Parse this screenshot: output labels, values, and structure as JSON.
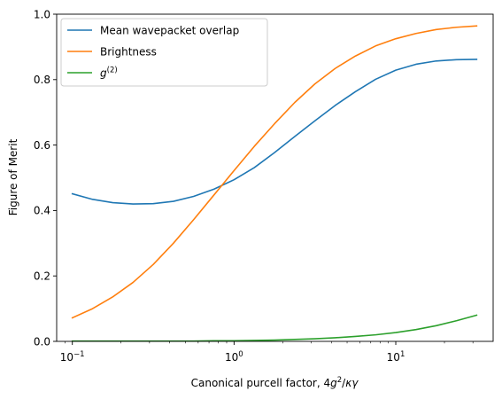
{
  "chart_data": {
    "type": "line",
    "x_scale": "log",
    "xlim": [
      0.08,
      40
    ],
    "ylim": [
      0.0,
      1.0
    ],
    "xlabel": "Canonical purcell factor, 4g²/κγ",
    "ylabel": "Figure of Merit",
    "legend_position": "top-left",
    "grid": false,
    "x_ticks": [
      {
        "value": 0.1,
        "base": "10",
        "exp": "−1"
      },
      {
        "value": 1,
        "base": "10",
        "exp": "0"
      },
      {
        "value": 10,
        "base": "10",
        "exp": "1"
      }
    ],
    "y_ticks": [
      "0.0",
      "0.2",
      "0.4",
      "0.6",
      "0.8",
      "1.0"
    ],
    "x": [
      0.1,
      0.1334,
      0.1778,
      0.2371,
      0.3162,
      0.4217,
      0.5623,
      0.7499,
      1.0,
      1.3335,
      1.7783,
      2.3714,
      3.1623,
      4.217,
      5.6234,
      7.4989,
      10.0,
      13.335,
      17.783,
      23.714,
      31.623
    ],
    "series": [
      {
        "name": "Mean wavepacket overlap",
        "color": "#1f77b4",
        "values": [
          0.451,
          0.434,
          0.424,
          0.42,
          0.421,
          0.428,
          0.443,
          0.465,
          0.494,
          0.531,
          0.577,
          0.626,
          0.674,
          0.721,
          0.763,
          0.801,
          0.829,
          0.847,
          0.857,
          0.861,
          0.862
        ]
      },
      {
        "name": "Brightness",
        "color": "#ff7f0e",
        "values": [
          0.072,
          0.1,
          0.136,
          0.18,
          0.235,
          0.3,
          0.372,
          0.447,
          0.522,
          0.596,
          0.665,
          0.73,
          0.787,
          0.834,
          0.872,
          0.903,
          0.925,
          0.941,
          0.953,
          0.96,
          0.964
        ]
      },
      {
        "name": "g⁽²⁾",
        "label_base": "g",
        "label_sup": "(2)",
        "color": "#2ca02c",
        "values": [
          0.001,
          0.001,
          0.001,
          0.001,
          0.001,
          0.001,
          0.001,
          0.002,
          0.002,
          0.003,
          0.004,
          0.006,
          0.008,
          0.011,
          0.015,
          0.02,
          0.027,
          0.036,
          0.048,
          0.063,
          0.08
        ]
      }
    ]
  }
}
